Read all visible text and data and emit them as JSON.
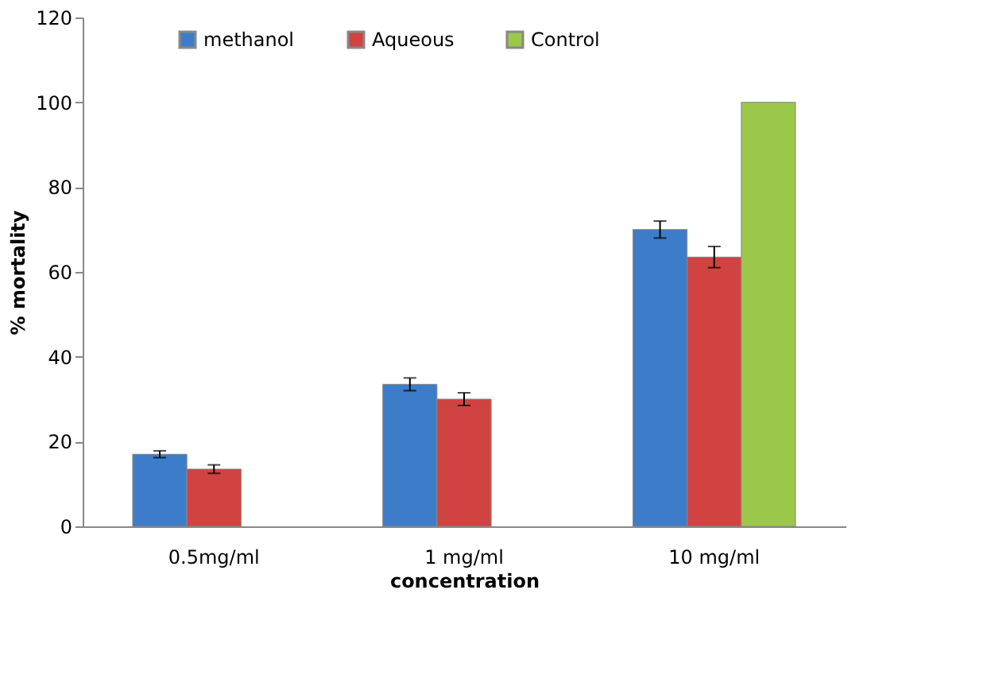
{
  "chart_data": {
    "type": "bar",
    "xlabel": "concentration",
    "ylabel": "% mortality",
    "categories": [
      "0.5mg/ml",
      "1 mg/ml",
      "10 mg/ml"
    ],
    "series": [
      {
        "name": "methanol",
        "color": "#3d7cc9",
        "values": [
          17,
          33.5,
          70
        ],
        "errors": [
          0.8,
          1.5,
          2
        ]
      },
      {
        "name": "Aqueous",
        "color": "#d04340",
        "values": [
          13.5,
          30,
          63.5
        ],
        "errors": [
          1,
          1.5,
          2.5
        ]
      },
      {
        "name": "Control",
        "color": "#9bc74a",
        "values": [
          null,
          null,
          100
        ]
      }
    ],
    "ylim": [
      0,
      120
    ],
    "yticks": [
      0,
      20,
      40,
      60,
      80,
      100,
      120
    ],
    "grid": false,
    "legend": "top"
  }
}
